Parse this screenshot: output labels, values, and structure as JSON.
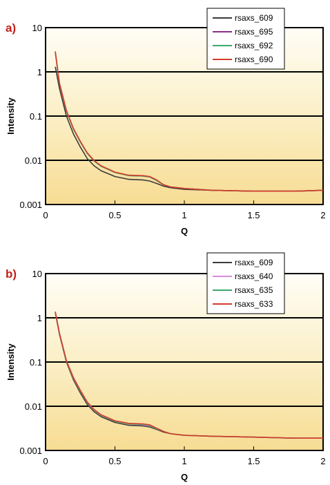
{
  "chart_data": [
    {
      "type": "line",
      "panel_label": "a)",
      "xlabel": "Q",
      "ylabel": "Intensity",
      "xlim": [
        0,
        2
      ],
      "ylim": [
        0.001,
        10
      ],
      "yscale": "log",
      "grid": "horizontal",
      "legend_position": "top-right",
      "x_tick_labels": [
        "0",
        "0.5",
        "1",
        "1.5",
        "2"
      ],
      "y_tick_labels": [
        "0.001",
        "0.01",
        "0.1",
        "1",
        "10"
      ],
      "x": [
        0.07,
        0.1,
        0.15,
        0.2,
        0.25,
        0.3,
        0.35,
        0.4,
        0.5,
        0.6,
        0.7,
        0.75,
        0.8,
        0.85,
        0.9,
        1.0,
        1.2,
        1.5,
        1.8,
        2.0
      ],
      "series": [
        {
          "name": "rsaxs_609",
          "color": "#3a3a3a",
          "values": [
            1.3,
            0.42,
            0.1,
            0.04,
            0.02,
            0.011,
            0.0075,
            0.0058,
            0.0043,
            0.0037,
            0.0036,
            0.0034,
            0.003,
            0.0026,
            0.0024,
            0.0022,
            0.0021,
            0.002,
            0.002,
            0.0021
          ]
        },
        {
          "name": "rsaxs_695",
          "color": "#8b2c8b",
          "values": [
            2.8,
            0.55,
            0.13,
            0.052,
            0.026,
            0.0145,
            0.0097,
            0.0074,
            0.0053,
            0.0045,
            0.0044,
            0.0042,
            0.0035,
            0.0028,
            0.0025,
            0.0023,
            0.0021,
            0.002,
            0.002,
            0.0021
          ]
        },
        {
          "name": "rsaxs_692",
          "color": "#3aaa6a",
          "values": [
            2.7,
            0.54,
            0.13,
            0.051,
            0.026,
            0.0143,
            0.0096,
            0.0073,
            0.0053,
            0.0045,
            0.0044,
            0.0042,
            0.0035,
            0.0028,
            0.0025,
            0.0023,
            0.0021,
            0.002,
            0.002,
            0.0021
          ]
        },
        {
          "name": "rsaxs_690",
          "color": "#d63a2a",
          "values": [
            2.9,
            0.56,
            0.135,
            0.053,
            0.027,
            0.0148,
            0.0099,
            0.0075,
            0.0054,
            0.0046,
            0.0045,
            0.0043,
            0.0036,
            0.0028,
            0.0025,
            0.0023,
            0.0021,
            0.002,
            0.002,
            0.0021
          ]
        }
      ]
    },
    {
      "type": "line",
      "panel_label": "b)",
      "xlabel": "Q",
      "ylabel": "Intensity",
      "xlim": [
        0,
        2
      ],
      "ylim": [
        0.001,
        10
      ],
      "yscale": "log",
      "grid": "horizontal",
      "legend_position": "top-right",
      "x_tick_labels": [
        "0",
        "0.5",
        "1",
        "1.5",
        "2"
      ],
      "y_tick_labels": [
        "0.001",
        "0.01",
        "0.1",
        "1",
        "10"
      ],
      "x": [
        0.07,
        0.1,
        0.15,
        0.2,
        0.25,
        0.3,
        0.35,
        0.4,
        0.5,
        0.6,
        0.7,
        0.75,
        0.8,
        0.85,
        0.9,
        1.0,
        1.2,
        1.5,
        1.8,
        2.0
      ],
      "series": [
        {
          "name": "rsaxs_609",
          "color": "#3a3a3a",
          "values": [
            1.3,
            0.42,
            0.1,
            0.04,
            0.02,
            0.011,
            0.0075,
            0.0058,
            0.0043,
            0.0037,
            0.0036,
            0.0034,
            0.003,
            0.0026,
            0.0024,
            0.0022,
            0.0021,
            0.002,
            0.0019,
            0.0019
          ]
        },
        {
          "name": "rsaxs_640",
          "color": "#d98ad9",
          "values": [
            1.35,
            0.44,
            0.105,
            0.043,
            0.022,
            0.012,
            0.0081,
            0.0062,
            0.0046,
            0.004,
            0.0038,
            0.0036,
            0.0031,
            0.0027,
            0.0024,
            0.0022,
            0.0021,
            0.002,
            0.0019,
            0.0019
          ]
        },
        {
          "name": "rsaxs_635",
          "color": "#3aaa6a",
          "values": [
            1.35,
            0.44,
            0.105,
            0.044,
            0.022,
            0.0122,
            0.0082,
            0.0063,
            0.0046,
            0.004,
            0.0039,
            0.0037,
            0.0031,
            0.0027,
            0.0024,
            0.0022,
            0.0021,
            0.002,
            0.0019,
            0.0019
          ]
        },
        {
          "name": "rsaxs_633",
          "color": "#d63a2a",
          "values": [
            1.38,
            0.45,
            0.108,
            0.045,
            0.023,
            0.0125,
            0.0084,
            0.0064,
            0.0047,
            0.0041,
            0.004,
            0.0038,
            0.0032,
            0.0027,
            0.0024,
            0.0022,
            0.0021,
            0.002,
            0.0019,
            0.0019
          ]
        }
      ]
    }
  ]
}
